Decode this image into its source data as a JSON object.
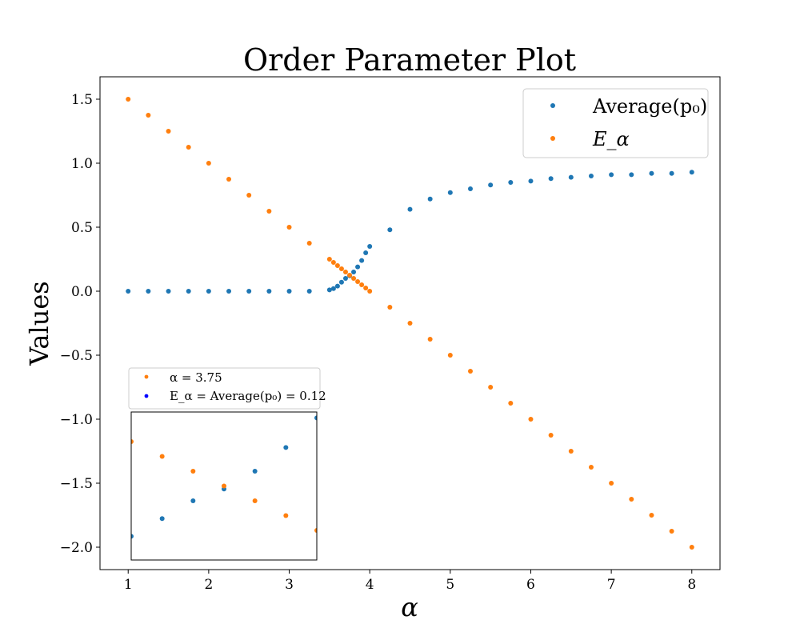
{
  "chart_data": {
    "type": "scatter",
    "title": "Order Parameter Plot",
    "xlabel": "α",
    "ylabel": "Values",
    "xlim": [
      0.65,
      8.35
    ],
    "ylim": [
      -2.175,
      1.675
    ],
    "xticks": [
      1,
      2,
      3,
      4,
      5,
      6,
      7,
      8
    ],
    "yticks": [
      1.5,
      1.0,
      0.5,
      0.0,
      -0.5,
      -1.0,
      -1.5,
      -2.0
    ],
    "xtick_labels": [
      "1",
      "2",
      "3",
      "4",
      "5",
      "6",
      "7",
      "8"
    ],
    "ytick_labels": [
      "1.5",
      "1.0",
      "0.5",
      "0.0",
      "−0.5",
      "−1.0",
      "−1.5",
      "−2.0"
    ],
    "legend_position": "upper-right",
    "series": [
      {
        "name": "Average(p₀)",
        "color": "#1f77b4",
        "x": [
          1.0,
          1.25,
          1.5,
          1.75,
          2.0,
          2.25,
          2.5,
          2.75,
          3.0,
          3.25,
          3.5,
          3.55,
          3.6,
          3.65,
          3.7,
          3.75,
          3.8,
          3.85,
          3.9,
          3.95,
          4.0,
          4.25,
          4.5,
          4.75,
          5.0,
          5.25,
          5.5,
          5.75,
          6.0,
          6.25,
          6.5,
          6.75,
          7.0,
          7.25,
          7.5,
          7.75,
          8.0
        ],
        "y": [
          0.0,
          0.0,
          0.0,
          0.0,
          0.0,
          0.0,
          0.0,
          0.0,
          0.0,
          0.0,
          0.01,
          0.02,
          0.04,
          0.07,
          0.1,
          0.12,
          0.15,
          0.19,
          0.24,
          0.3,
          0.35,
          0.48,
          0.64,
          0.72,
          0.77,
          0.8,
          0.83,
          0.85,
          0.86,
          0.88,
          0.89,
          0.9,
          0.91,
          0.91,
          0.92,
          0.92,
          0.93
        ]
      },
      {
        "name": "E_α",
        "color": "#ff7f0e",
        "x": [
          1.0,
          1.25,
          1.5,
          1.75,
          2.0,
          2.25,
          2.5,
          2.75,
          3.0,
          3.25,
          3.5,
          3.55,
          3.6,
          3.65,
          3.7,
          3.75,
          3.8,
          3.85,
          3.9,
          3.95,
          4.0,
          4.25,
          4.5,
          4.75,
          5.0,
          5.25,
          5.5,
          5.75,
          6.0,
          6.25,
          6.5,
          6.75,
          7.0,
          7.25,
          7.5,
          7.75,
          8.0
        ],
        "y": [
          1.5,
          1.375,
          1.25,
          1.125,
          1.0,
          0.875,
          0.75,
          0.625,
          0.5,
          0.375,
          0.25,
          0.225,
          0.2,
          0.175,
          0.15,
          0.125,
          0.1,
          0.075,
          0.05,
          0.025,
          0.0,
          -0.125,
          -0.25,
          -0.375,
          -0.5,
          -0.625,
          -0.75,
          -0.875,
          -1.0,
          -1.125,
          -1.25,
          -1.375,
          -1.5,
          -1.625,
          -1.75,
          -1.875,
          -2.0
        ]
      }
    ],
    "inset": {
      "xlim": [
        3.6,
        3.9
      ],
      "ylim": [
        0.0,
        0.25
      ],
      "legend": [
        {
          "label": "α = 3.75",
          "color": "#ff7f0e"
        },
        {
          "label": "E_α = Average(p₀) = 0.12",
          "color": "#0000ff"
        }
      ]
    }
  }
}
